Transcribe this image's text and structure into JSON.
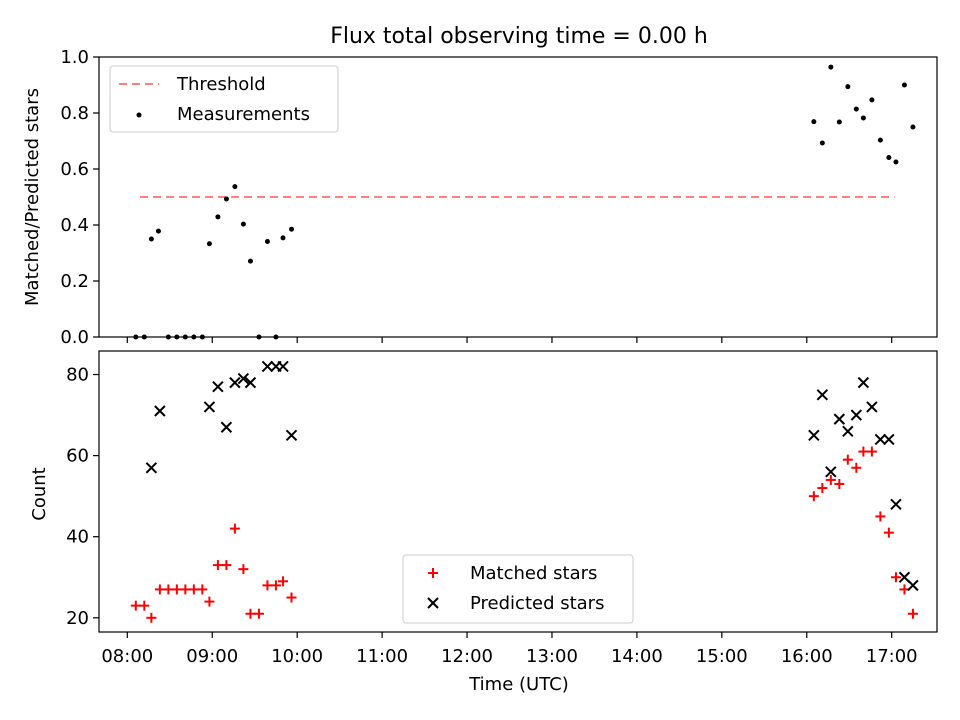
{
  "figure": {
    "title": "Flux total observing time = 0.00 h"
  },
  "colors": {
    "threshold": "#ff7f7f",
    "measurements": "#000000",
    "matched": "#ff0000",
    "predicted": "#000000"
  },
  "chart_data": [
    {
      "type": "scatter",
      "title": "Flux total observing time = 0.00 h",
      "xlabel": "",
      "ylabel": "Matched/Predicted stars",
      "xlim": [
        "07:40",
        "17:32"
      ],
      "ylim": [
        0,
        1.0
      ],
      "yticks": [
        "0.0",
        "0.2",
        "0.4",
        "0.6",
        "0.8",
        "1.0"
      ],
      "legend_position": "upper-left",
      "legend": {
        "threshold": "Threshold",
        "measurements": "Measurements"
      },
      "threshold": {
        "name": "Threshold",
        "y": 0.5,
        "x": [
          "08:09",
          "17:02"
        ]
      },
      "series": [
        {
          "name": "Measurements",
          "points": [
            [
              "08:06",
              0.0
            ],
            [
              "08:12",
              0.0
            ],
            [
              "08:17",
              0.35
            ],
            [
              "08:22",
              0.378
            ],
            [
              "08:29",
              0.0
            ],
            [
              "08:35",
              0.0
            ],
            [
              "08:41",
              0.0
            ],
            [
              "08:47",
              0.0
            ],
            [
              "08:53",
              0.0
            ],
            [
              "08:58",
              0.333
            ],
            [
              "09:04",
              0.429
            ],
            [
              "09:10",
              0.493
            ],
            [
              "09:16",
              0.537
            ],
            [
              "09:22",
              0.403
            ],
            [
              "09:27",
              0.271
            ],
            [
              "09:33",
              0.0
            ],
            [
              "09:39",
              0.341
            ],
            [
              "09:45",
              0.0
            ],
            [
              "09:50",
              0.354
            ],
            [
              "09:56",
              0.385
            ],
            [
              "16:05",
              0.769
            ],
            [
              "16:11",
              0.693
            ],
            [
              "16:17",
              0.964
            ],
            [
              "16:23",
              0.768
            ],
            [
              "16:29",
              0.894
            ],
            [
              "16:35",
              0.814
            ],
            [
              "16:40",
              0.782
            ],
            [
              "16:46",
              0.847
            ],
            [
              "16:52",
              0.703
            ],
            [
              "16:58",
              0.641
            ],
            [
              "17:03",
              0.625
            ],
            [
              "17:09",
              0.9
            ],
            [
              "17:15",
              0.75
            ]
          ]
        }
      ]
    },
    {
      "type": "scatter",
      "title": "",
      "xlabel": "Time (UTC)",
      "ylabel": "Count",
      "xticks": [
        "08:00",
        "09:00",
        "10:00",
        "11:00",
        "12:00",
        "13:00",
        "14:00",
        "15:00",
        "16:00",
        "17:00"
      ],
      "yticks": [
        "20",
        "40",
        "60",
        "80"
      ],
      "xlim": [
        "07:40",
        "17:32"
      ],
      "ylim": [
        16.5,
        85.8
      ],
      "legend_position": "lower-center",
      "series": [
        {
          "name": "Matched stars",
          "marker": "+",
          "points": [
            [
              "08:06",
              23
            ],
            [
              "08:12",
              23
            ],
            [
              "08:17",
              20
            ],
            [
              "08:23",
              27
            ],
            [
              "08:29",
              27
            ],
            [
              "08:35",
              27
            ],
            [
              "08:41",
              27
            ],
            [
              "08:47",
              27
            ],
            [
              "08:53",
              27
            ],
            [
              "08:58",
              24
            ],
            [
              "09:04",
              33
            ],
            [
              "09:10",
              33
            ],
            [
              "09:16",
              42
            ],
            [
              "09:22",
              32
            ],
            [
              "09:27",
              21
            ],
            [
              "09:33",
              21
            ],
            [
              "09:39",
              28
            ],
            [
              "09:45",
              28
            ],
            [
              "09:50",
              29
            ],
            [
              "09:56",
              25
            ],
            [
              "16:05",
              50
            ],
            [
              "16:11",
              52
            ],
            [
              "16:17",
              54
            ],
            [
              "16:23",
              53
            ],
            [
              "16:29",
              59
            ],
            [
              "16:35",
              57
            ],
            [
              "16:40",
              61
            ],
            [
              "16:46",
              61
            ],
            [
              "16:52",
              45
            ],
            [
              "16:58",
              41
            ],
            [
              "17:03",
              30
            ],
            [
              "17:09",
              27
            ],
            [
              "17:15",
              21
            ]
          ]
        },
        {
          "name": "Predicted stars",
          "marker": "x",
          "points": [
            [
              "08:17",
              57
            ],
            [
              "08:23",
              71
            ],
            [
              "08:58",
              72
            ],
            [
              "09:04",
              77
            ],
            [
              "09:10",
              67
            ],
            [
              "09:16",
              78
            ],
            [
              "09:22",
              79
            ],
            [
              "09:27",
              78
            ],
            [
              "09:39",
              82
            ],
            [
              "09:45",
              82
            ],
            [
              "09:50",
              82
            ],
            [
              "09:56",
              65
            ],
            [
              "16:05",
              65
            ],
            [
              "16:11",
              75
            ],
            [
              "16:17",
              56
            ],
            [
              "16:23",
              69
            ],
            [
              "16:29",
              66
            ],
            [
              "16:35",
              70
            ],
            [
              "16:40",
              78
            ],
            [
              "16:46",
              72
            ],
            [
              "16:52",
              64
            ],
            [
              "16:58",
              64
            ],
            [
              "17:03",
              48
            ],
            [
              "17:09",
              30
            ],
            [
              "17:15",
              28
            ]
          ]
        }
      ]
    }
  ]
}
